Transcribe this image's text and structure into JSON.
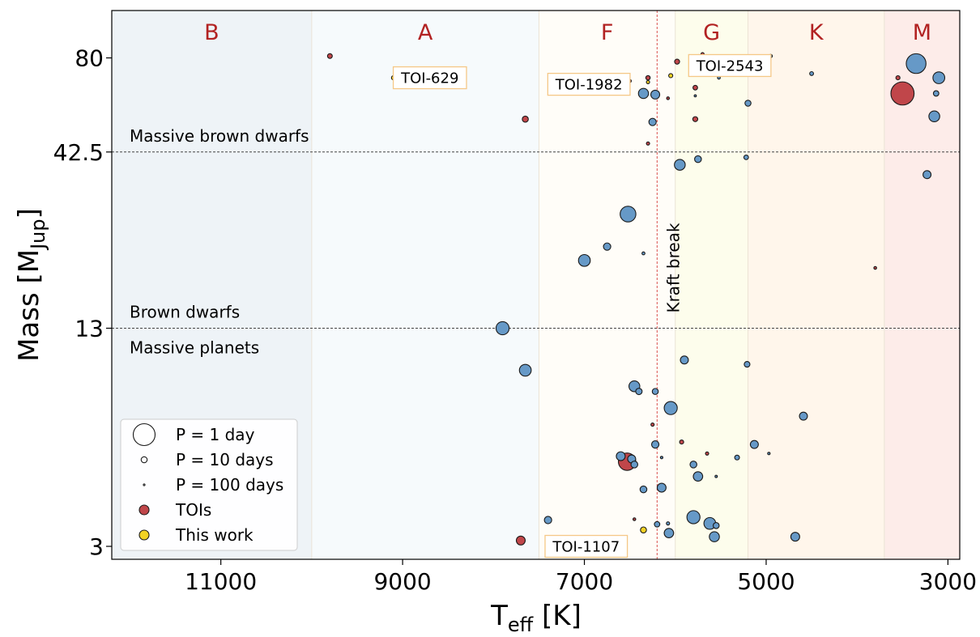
{
  "chart_data": {
    "type": "scatter",
    "title": "",
    "xlabel_main": "T",
    "xlabel_sub": "eff",
    "xlabel_unit": " [K]",
    "ylabel_main": "Mass [M",
    "ylabel_sub": "Jup",
    "ylabel_end": "]",
    "xlim": [
      12200,
      2870
    ],
    "ylim": [
      2.75,
      110
    ],
    "y_scale": "log",
    "x_ticks": [
      11000,
      9000,
      7000,
      5000,
      3000
    ],
    "x_tick_labels": [
      "11000",
      "9000",
      "7000",
      "5000",
      "3000"
    ],
    "y_ticks": [
      3,
      13,
      42.5,
      80
    ],
    "y_tick_labels": [
      "3",
      "13",
      "42.5",
      "80"
    ],
    "grid": false,
    "spectral_classes": [
      {
        "label": "B",
        "t_min": 10000,
        "t_max": 12200,
        "color": "#eef3f7"
      },
      {
        "label": "A",
        "t_min": 7500,
        "t_max": 10000,
        "color": "#f6fafc"
      },
      {
        "label": "F",
        "t_min": 6000,
        "t_max": 7500,
        "color": "#fffdf8"
      },
      {
        "label": "G",
        "t_min": 5200,
        "t_max": 6000,
        "color": "#fdfdec"
      },
      {
        "label": "K",
        "t_min": 3700,
        "t_max": 5200,
        "color": "#fff6eb"
      },
      {
        "label": "M",
        "t_min": 2870,
        "t_max": 3700,
        "color": "#fdece9"
      }
    ],
    "mass_lines": [
      {
        "mass": 42.5,
        "label_above": "Massive brown dwarfs",
        "label_below": ""
      },
      {
        "mass": 13,
        "label_above": "Brown dwarfs",
        "label_below": "Massive planets"
      }
    ],
    "kraft_break": {
      "teff": 6200,
      "label": "Kraft break",
      "color": "#d9534f"
    },
    "annotations": [
      {
        "label": "TOI-629",
        "teff": 8700,
        "mass": 70
      },
      {
        "label": "TOI-1982",
        "teff": 6950,
        "mass": 67
      },
      {
        "label": "TOI-2543",
        "teff": 5400,
        "mass": 76
      },
      {
        "label": "TOI-1107",
        "teff": 6980,
        "mass": 3.0
      }
    ],
    "legend": {
      "placement": "lower-left",
      "entries": [
        {
          "label": "P = 1 day",
          "kind": "size",
          "period": 1
        },
        {
          "label": "P = 10 days",
          "kind": "size",
          "period": 10
        },
        {
          "label": "P = 100 days",
          "kind": "size",
          "period": 100
        },
        {
          "label": "TOIs",
          "kind": "color",
          "color": "#c0464a"
        },
        {
          "label": "This work",
          "kind": "color",
          "color": "#f2d224"
        }
      ]
    },
    "series": [
      {
        "name": "Known",
        "color": "#6699c7",
        "points": [
          {
            "t": 3350,
            "m": 77,
            "p": 1.2
          },
          {
            "t": 3100,
            "m": 70,
            "p": 3
          },
          {
            "t": 3150,
            "m": 54,
            "p": 3.5
          },
          {
            "t": 3130,
            "m": 63,
            "p": 12
          },
          {
            "t": 3230,
            "m": 36.5,
            "p": 6
          },
          {
            "t": 4500,
            "m": 72,
            "p": 22
          },
          {
            "t": 4950,
            "m": 81,
            "p": 30
          },
          {
            "t": 5200,
            "m": 59,
            "p": 10
          },
          {
            "t": 5220,
            "m": 41,
            "p": 16
          },
          {
            "t": 5520,
            "m": 70,
            "p": 40
          },
          {
            "t": 5780,
            "m": 62,
            "p": 60
          },
          {
            "t": 5750,
            "m": 40.5,
            "p": 8
          },
          {
            "t": 5950,
            "m": 39,
            "p": 3.5
          },
          {
            "t": 6350,
            "m": 63,
            "p": 4
          },
          {
            "t": 6220,
            "m": 62.5,
            "p": 5
          },
          {
            "t": 6250,
            "m": 52,
            "p": 7
          },
          {
            "t": 6520,
            "m": 28,
            "p": 1.8
          },
          {
            "t": 6750,
            "m": 22.5,
            "p": 7
          },
          {
            "t": 6350,
            "m": 21.5,
            "p": 35
          },
          {
            "t": 7000,
            "m": 20.5,
            "p": 3
          },
          {
            "t": 7900,
            "m": 13,
            "p": 2.5
          },
          {
            "t": 7650,
            "m": 9.8,
            "p": 3
          },
          {
            "t": 5900,
            "m": 10.5,
            "p": 6
          },
          {
            "t": 5210,
            "m": 10.2,
            "p": 11
          },
          {
            "t": 6450,
            "m": 8.8,
            "p": 3.5
          },
          {
            "t": 6400,
            "m": 8.5,
            "p": 9
          },
          {
            "t": 6220,
            "m": 8.5,
            "p": 10
          },
          {
            "t": 6050,
            "m": 7.6,
            "p": 2.5
          },
          {
            "t": 4590,
            "m": 7.2,
            "p": 6
          },
          {
            "t": 5130,
            "m": 5.95,
            "p": 6
          },
          {
            "t": 6220,
            "m": 5.95,
            "p": 7
          },
          {
            "t": 4970,
            "m": 5.6,
            "p": 50
          },
          {
            "t": 5320,
            "m": 5.45,
            "p": 15
          },
          {
            "t": 6600,
            "m": 5.5,
            "p": 5
          },
          {
            "t": 6480,
            "m": 5.4,
            "p": 6
          },
          {
            "t": 6450,
            "m": 5.2,
            "p": 8
          },
          {
            "t": 6150,
            "m": 5.45,
            "p": 50
          },
          {
            "t": 5800,
            "m": 5.2,
            "p": 8
          },
          {
            "t": 5750,
            "m": 4.8,
            "p": 4.5
          },
          {
            "t": 5550,
            "m": 4.8,
            "p": 55
          },
          {
            "t": 6350,
            "m": 4.4,
            "p": 8
          },
          {
            "t": 6150,
            "m": 4.45,
            "p": 5
          },
          {
            "t": 7400,
            "m": 3.58,
            "p": 7
          },
          {
            "t": 6080,
            "m": 3.5,
            "p": 30
          },
          {
            "t": 6200,
            "m": 3.48,
            "p": 12
          },
          {
            "t": 5800,
            "m": 3.65,
            "p": 2.5
          },
          {
            "t": 5620,
            "m": 3.5,
            "p": 3
          },
          {
            "t": 5550,
            "m": 3.45,
            "p": 10
          },
          {
            "t": 6070,
            "m": 3.28,
            "p": 4.5
          },
          {
            "t": 5570,
            "m": 3.2,
            "p": 4
          },
          {
            "t": 4680,
            "m": 3.2,
            "p": 5
          }
        ]
      },
      {
        "name": "TOIs",
        "color": "#c0464a",
        "points": [
          {
            "t": 9800,
            "m": 81,
            "p": 15
          },
          {
            "t": 3500,
            "m": 63,
            "p": 0.9
          },
          {
            "t": 3550,
            "m": 70,
            "p": 20
          },
          {
            "t": 5700,
            "m": 82,
            "p": 30
          },
          {
            "t": 5980,
            "m": 78,
            "p": 14
          },
          {
            "t": 6300,
            "m": 70,
            "p": 18
          },
          {
            "t": 6500,
            "m": 68.5,
            "p": 35
          },
          {
            "t": 6080,
            "m": 61,
            "p": 40
          },
          {
            "t": 5780,
            "m": 65.5,
            "p": 16
          },
          {
            "t": 5780,
            "m": 53,
            "p": 14
          },
          {
            "t": 7650,
            "m": 53,
            "p": 10
          },
          {
            "t": 6300,
            "m": 45,
            "p": 30
          },
          {
            "t": 3800,
            "m": 19.5,
            "p": 40
          },
          {
            "t": 6250,
            "m": 6.8,
            "p": 30
          },
          {
            "t": 5930,
            "m": 6.05,
            "p": 20
          },
          {
            "t": 5650,
            "m": 5.6,
            "p": 30
          },
          {
            "t": 6530,
            "m": 5.3,
            "p": 1.5
          },
          {
            "t": 6450,
            "m": 3.6,
            "p": 40
          },
          {
            "t": 7700,
            "m": 3.12,
            "p": 5
          }
        ]
      },
      {
        "name": "This work",
        "color": "#f2d224",
        "points": [
          {
            "t": 9100,
            "m": 70,
            "p": 20
          },
          {
            "t": 6300,
            "m": 68,
            "p": 30
          },
          {
            "t": 6050,
            "m": 71,
            "p": 20
          },
          {
            "t": 6350,
            "m": 3.35,
            "p": 10
          }
        ]
      }
    ]
  }
}
